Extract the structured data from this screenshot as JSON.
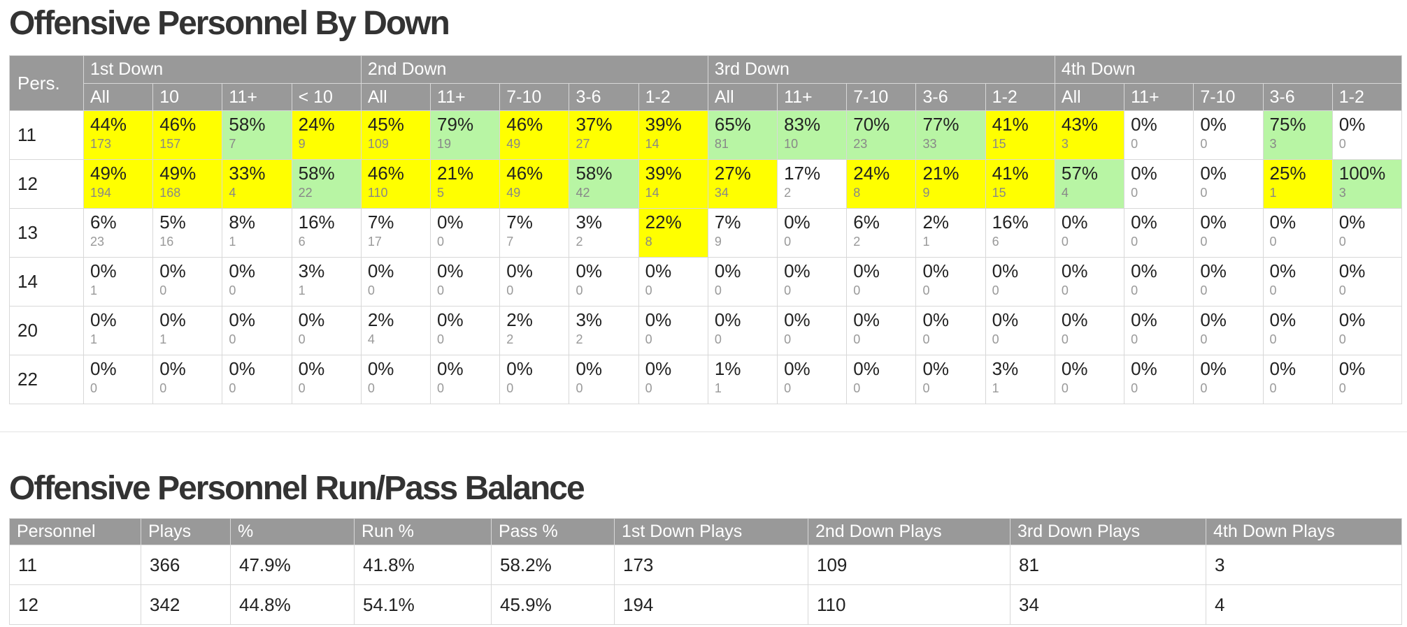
{
  "by_down": {
    "title": "Offensive Personnel By Down",
    "pers_header": "Pers.",
    "groups": [
      {
        "label": "1st Down",
        "cols": [
          "All",
          "10",
          "11+",
          "< 10"
        ]
      },
      {
        "label": "2nd Down",
        "cols": [
          "All",
          "11+",
          "7-10",
          "3-6",
          "1-2"
        ]
      },
      {
        "label": "3rd Down",
        "cols": [
          "All",
          "11+",
          "7-10",
          "3-6",
          "1-2"
        ]
      },
      {
        "label": "4th Down",
        "cols": [
          "All",
          "11+",
          "7-10",
          "3-6",
          "1-2"
        ]
      }
    ],
    "rows": [
      {
        "pers": "11",
        "cells": [
          {
            "p": "44%",
            "n": "173",
            "h": "y"
          },
          {
            "p": "46%",
            "n": "157",
            "h": "y"
          },
          {
            "p": "58%",
            "n": "7",
            "h": "g"
          },
          {
            "p": "24%",
            "n": "9",
            "h": "y"
          },
          {
            "p": "45%",
            "n": "109",
            "h": "y"
          },
          {
            "p": "79%",
            "n": "19",
            "h": "g"
          },
          {
            "p": "46%",
            "n": "49",
            "h": "y"
          },
          {
            "p": "37%",
            "n": "27",
            "h": "y"
          },
          {
            "p": "39%",
            "n": "14",
            "h": "y"
          },
          {
            "p": "65%",
            "n": "81",
            "h": "g"
          },
          {
            "p": "83%",
            "n": "10",
            "h": "g"
          },
          {
            "p": "70%",
            "n": "23",
            "h": "g"
          },
          {
            "p": "77%",
            "n": "33",
            "h": "g"
          },
          {
            "p": "41%",
            "n": "15",
            "h": "y"
          },
          {
            "p": "43%",
            "n": "3",
            "h": "y"
          },
          {
            "p": "0%",
            "n": "0",
            "h": ""
          },
          {
            "p": "0%",
            "n": "0",
            "h": ""
          },
          {
            "p": "75%",
            "n": "3",
            "h": "g"
          },
          {
            "p": "0%",
            "n": "0",
            "h": ""
          }
        ]
      },
      {
        "pers": "12",
        "cells": [
          {
            "p": "49%",
            "n": "194",
            "h": "y"
          },
          {
            "p": "49%",
            "n": "168",
            "h": "y"
          },
          {
            "p": "33%",
            "n": "4",
            "h": "y"
          },
          {
            "p": "58%",
            "n": "22",
            "h": "g"
          },
          {
            "p": "46%",
            "n": "110",
            "h": "y"
          },
          {
            "p": "21%",
            "n": "5",
            "h": "y"
          },
          {
            "p": "46%",
            "n": "49",
            "h": "y"
          },
          {
            "p": "58%",
            "n": "42",
            "h": "g"
          },
          {
            "p": "39%",
            "n": "14",
            "h": "y"
          },
          {
            "p": "27%",
            "n": "34",
            "h": "y"
          },
          {
            "p": "17%",
            "n": "2",
            "h": ""
          },
          {
            "p": "24%",
            "n": "8",
            "h": "y"
          },
          {
            "p": "21%",
            "n": "9",
            "h": "y"
          },
          {
            "p": "41%",
            "n": "15",
            "h": "y"
          },
          {
            "p": "57%",
            "n": "4",
            "h": "g"
          },
          {
            "p": "0%",
            "n": "0",
            "h": ""
          },
          {
            "p": "0%",
            "n": "0",
            "h": ""
          },
          {
            "p": "25%",
            "n": "1",
            "h": "y"
          },
          {
            "p": "100%",
            "n": "3",
            "h": "g"
          }
        ]
      },
      {
        "pers": "13",
        "cells": [
          {
            "p": "6%",
            "n": "23",
            "h": ""
          },
          {
            "p": "5%",
            "n": "16",
            "h": ""
          },
          {
            "p": "8%",
            "n": "1",
            "h": ""
          },
          {
            "p": "16%",
            "n": "6",
            "h": ""
          },
          {
            "p": "7%",
            "n": "17",
            "h": ""
          },
          {
            "p": "0%",
            "n": "0",
            "h": ""
          },
          {
            "p": "7%",
            "n": "7",
            "h": ""
          },
          {
            "p": "3%",
            "n": "2",
            "h": ""
          },
          {
            "p": "22%",
            "n": "8",
            "h": "y"
          },
          {
            "p": "7%",
            "n": "9",
            "h": ""
          },
          {
            "p": "0%",
            "n": "0",
            "h": ""
          },
          {
            "p": "6%",
            "n": "2",
            "h": ""
          },
          {
            "p": "2%",
            "n": "1",
            "h": ""
          },
          {
            "p": "16%",
            "n": "6",
            "h": ""
          },
          {
            "p": "0%",
            "n": "0",
            "h": ""
          },
          {
            "p": "0%",
            "n": "0",
            "h": ""
          },
          {
            "p": "0%",
            "n": "0",
            "h": ""
          },
          {
            "p": "0%",
            "n": "0",
            "h": ""
          },
          {
            "p": "0%",
            "n": "0",
            "h": ""
          }
        ]
      },
      {
        "pers": "14",
        "cells": [
          {
            "p": "0%",
            "n": "1",
            "h": ""
          },
          {
            "p": "0%",
            "n": "0",
            "h": ""
          },
          {
            "p": "0%",
            "n": "0",
            "h": ""
          },
          {
            "p": "3%",
            "n": "1",
            "h": ""
          },
          {
            "p": "0%",
            "n": "0",
            "h": ""
          },
          {
            "p": "0%",
            "n": "0",
            "h": ""
          },
          {
            "p": "0%",
            "n": "0",
            "h": ""
          },
          {
            "p": "0%",
            "n": "0",
            "h": ""
          },
          {
            "p": "0%",
            "n": "0",
            "h": ""
          },
          {
            "p": "0%",
            "n": "0",
            "h": ""
          },
          {
            "p": "0%",
            "n": "0",
            "h": ""
          },
          {
            "p": "0%",
            "n": "0",
            "h": ""
          },
          {
            "p": "0%",
            "n": "0",
            "h": ""
          },
          {
            "p": "0%",
            "n": "0",
            "h": ""
          },
          {
            "p": "0%",
            "n": "0",
            "h": ""
          },
          {
            "p": "0%",
            "n": "0",
            "h": ""
          },
          {
            "p": "0%",
            "n": "0",
            "h": ""
          },
          {
            "p": "0%",
            "n": "0",
            "h": ""
          },
          {
            "p": "0%",
            "n": "0",
            "h": ""
          }
        ]
      },
      {
        "pers": "20",
        "cells": [
          {
            "p": "0%",
            "n": "1",
            "h": ""
          },
          {
            "p": "0%",
            "n": "1",
            "h": ""
          },
          {
            "p": "0%",
            "n": "0",
            "h": ""
          },
          {
            "p": "0%",
            "n": "0",
            "h": ""
          },
          {
            "p": "2%",
            "n": "4",
            "h": ""
          },
          {
            "p": "0%",
            "n": "0",
            "h": ""
          },
          {
            "p": "2%",
            "n": "2",
            "h": ""
          },
          {
            "p": "3%",
            "n": "2",
            "h": ""
          },
          {
            "p": "0%",
            "n": "0",
            "h": ""
          },
          {
            "p": "0%",
            "n": "0",
            "h": ""
          },
          {
            "p": "0%",
            "n": "0",
            "h": ""
          },
          {
            "p": "0%",
            "n": "0",
            "h": ""
          },
          {
            "p": "0%",
            "n": "0",
            "h": ""
          },
          {
            "p": "0%",
            "n": "0",
            "h": ""
          },
          {
            "p": "0%",
            "n": "0",
            "h": ""
          },
          {
            "p": "0%",
            "n": "0",
            "h": ""
          },
          {
            "p": "0%",
            "n": "0",
            "h": ""
          },
          {
            "p": "0%",
            "n": "0",
            "h": ""
          },
          {
            "p": "0%",
            "n": "0",
            "h": ""
          }
        ]
      },
      {
        "pers": "22",
        "cells": [
          {
            "p": "0%",
            "n": "0",
            "h": ""
          },
          {
            "p": "0%",
            "n": "0",
            "h": ""
          },
          {
            "p": "0%",
            "n": "0",
            "h": ""
          },
          {
            "p": "0%",
            "n": "0",
            "h": ""
          },
          {
            "p": "0%",
            "n": "0",
            "h": ""
          },
          {
            "p": "0%",
            "n": "0",
            "h": ""
          },
          {
            "p": "0%",
            "n": "0",
            "h": ""
          },
          {
            "p": "0%",
            "n": "0",
            "h": ""
          },
          {
            "p": "0%",
            "n": "0",
            "h": ""
          },
          {
            "p": "1%",
            "n": "1",
            "h": ""
          },
          {
            "p": "0%",
            "n": "0",
            "h": ""
          },
          {
            "p": "0%",
            "n": "0",
            "h": ""
          },
          {
            "p": "0%",
            "n": "0",
            "h": ""
          },
          {
            "p": "3%",
            "n": "1",
            "h": ""
          },
          {
            "p": "0%",
            "n": "0",
            "h": ""
          },
          {
            "p": "0%",
            "n": "0",
            "h": ""
          },
          {
            "p": "0%",
            "n": "0",
            "h": ""
          },
          {
            "p": "0%",
            "n": "0",
            "h": ""
          },
          {
            "p": "0%",
            "n": "0",
            "h": ""
          }
        ]
      }
    ]
  },
  "balance": {
    "title": "Offensive Personnel Run/Pass Balance",
    "headers": [
      "Personnel",
      "Plays",
      "%",
      "Run %",
      "Pass %",
      "1st Down Plays",
      "2nd Down Plays",
      "3rd Down Plays",
      "4th Down Plays"
    ],
    "rows": [
      [
        "11",
        "366",
        "47.9%",
        "41.8%",
        "58.2%",
        "173",
        "109",
        "81",
        "3"
      ],
      [
        "12",
        "342",
        "44.8%",
        "54.1%",
        "45.9%",
        "194",
        "110",
        "34",
        "4"
      ]
    ]
  },
  "colors": {
    "header_bg": "#999999",
    "highlight_yellow": "#ffff00",
    "highlight_green": "#b8f5a4"
  }
}
